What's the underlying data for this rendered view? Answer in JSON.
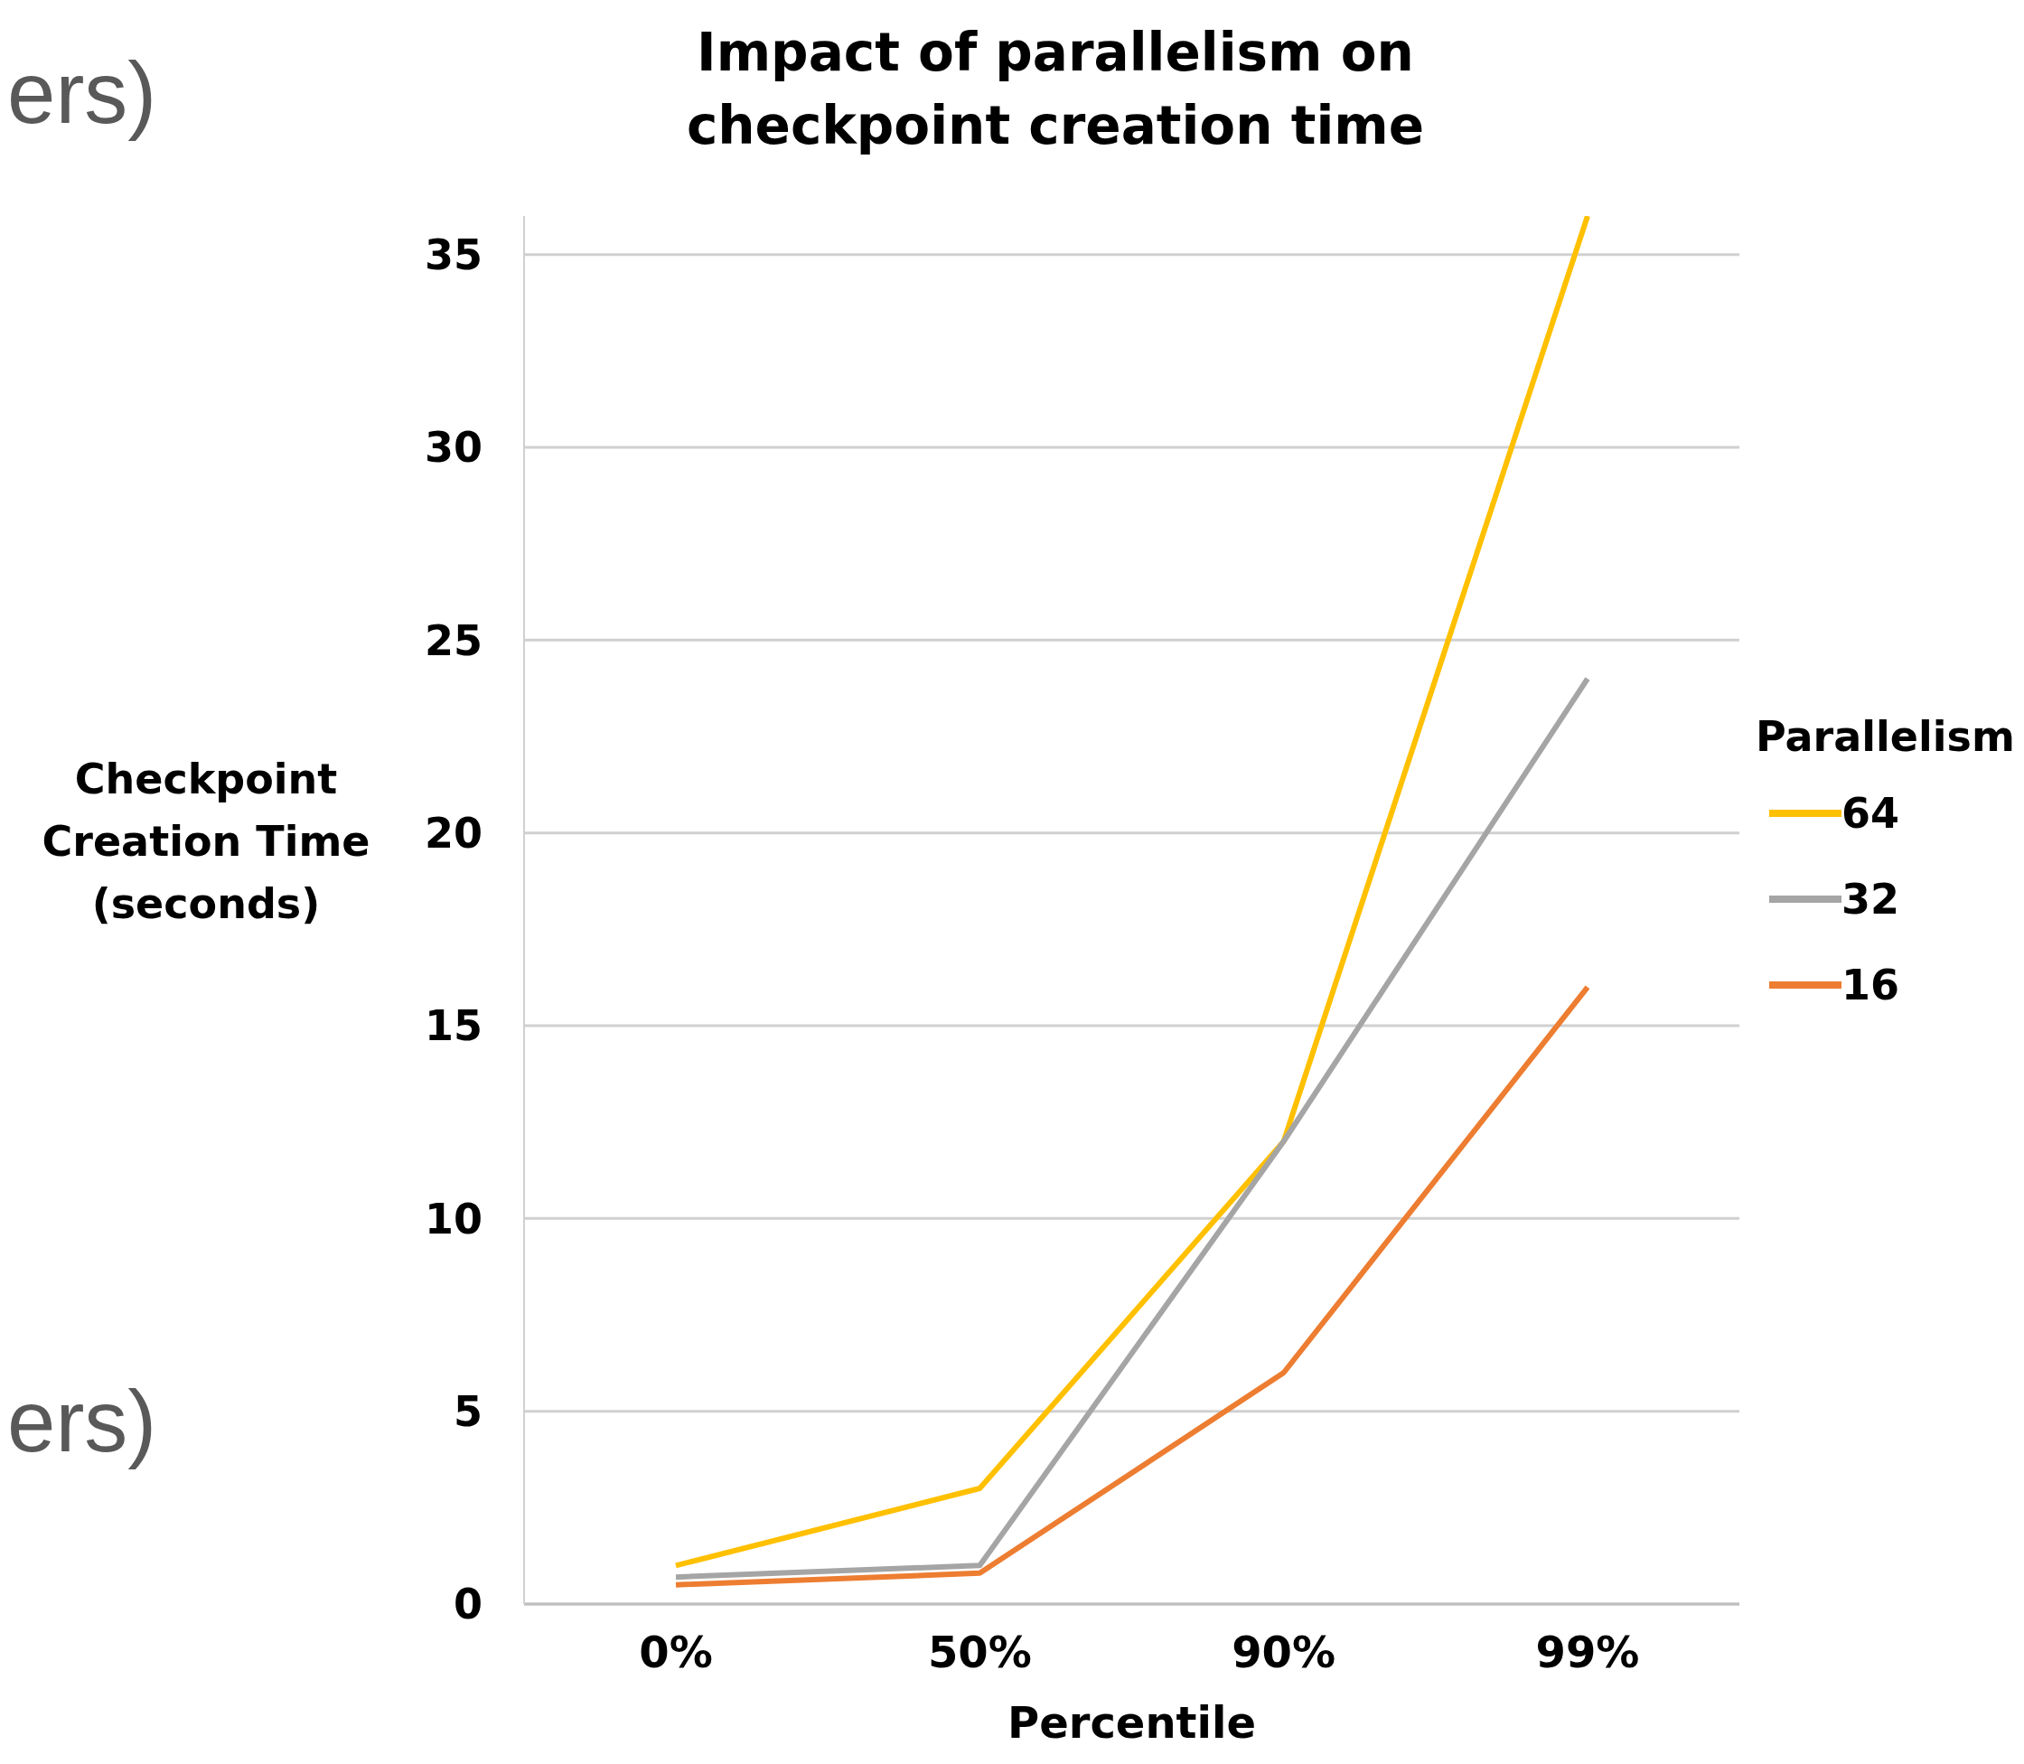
{
  "chart_data": {
    "type": "line",
    "title": "Impact of parallelism on checkpoint creation time",
    "xlabel": "Percentile",
    "ylabel": "Checkpoint Creation Time (seconds)",
    "legend_title": "Parallelism",
    "categories": [
      "0%",
      "50%",
      "90%",
      "99%"
    ],
    "series": [
      {
        "name": "64",
        "color": "#ffc000",
        "values": [
          1,
          3,
          12,
          36
        ]
      },
      {
        "name": "32",
        "color": "#a5a5a5",
        "values": [
          0.7,
          1,
          12,
          24
        ]
      },
      {
        "name": "16",
        "color": "#ed7d31",
        "values": [
          0.5,
          0.8,
          6,
          16
        ]
      }
    ],
    "ylim": [
      0,
      36
    ],
    "yticks": [
      0,
      5,
      10,
      15,
      20,
      25,
      30,
      35
    ],
    "grid": "y",
    "legend": "right",
    "marker": "none",
    "line_style": "solid",
    "annotations": [
      "ers)",
      "ers)"
    ]
  }
}
